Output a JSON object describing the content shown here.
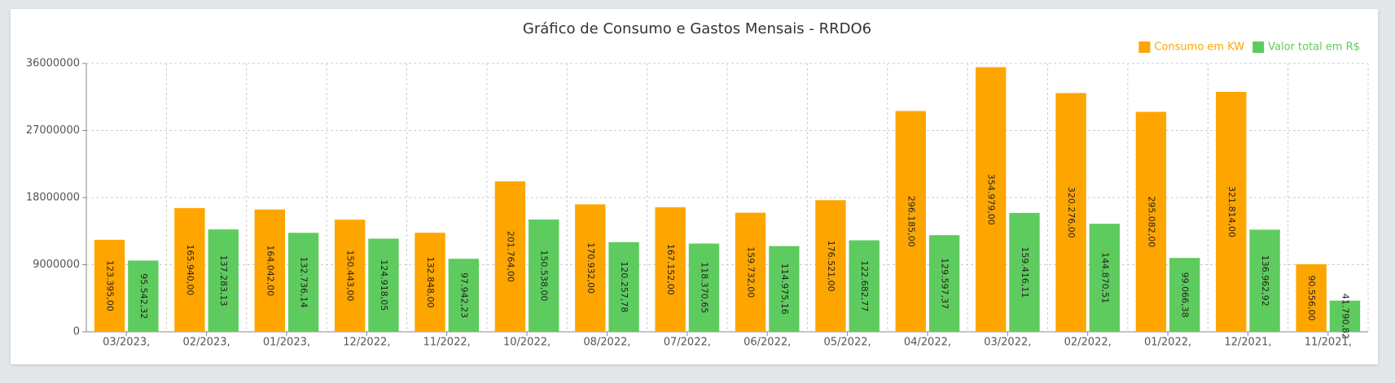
{
  "chart_data": {
    "type": "bar",
    "title": "Gráfico de Consumo e Gastos Mensais - RRDO6",
    "categories": [
      "03/2023,",
      "02/2023,",
      "01/2023,",
      "12/2022,",
      "11/2022,",
      "10/2022,",
      "08/2022,",
      "07/2022,",
      "06/2022,",
      "05/2022,",
      "04/2022,",
      "03/2022,",
      "02/2022,",
      "01/2022,",
      "12/2021,",
      "11/2021,"
    ],
    "series": [
      {
        "name": "Consumo em KW",
        "color": "#ffa500",
        "values": [
          12339500,
          16594000,
          16404200,
          15044300,
          13284800,
          20176400,
          17093200,
          16715200,
          15973200,
          17652100,
          29618500,
          35497900,
          32027600,
          29508200,
          32181400,
          9055600
        ],
        "value_labels": [
          "123.395,00",
          "165.940,00",
          "164.042,00",
          "150.443,00",
          "132.848,00",
          "201.764,00",
          "170.932,00",
          "167.152,00",
          "159.732,00",
          "176.521,00",
          "296.185,00",
          "354.979,00",
          "320.276,00",
          "295.082,00",
          "321.814,00",
          "90.556,00"
        ]
      },
      {
        "name": "Valor total em R$",
        "color": "#5ecb5e",
        "values": [
          9554232,
          13728313,
          13273614,
          12491805,
          9794223,
          15053800,
          12025778,
          11837065,
          11497516,
          12268277,
          12959737,
          15941611,
          14487051,
          9906638,
          13696292,
          4179082
        ],
        "value_labels": [
          "95.542,32",
          "137.283,13",
          "132.736,14",
          "124.918,05",
          "97.942,23",
          "150.538,00",
          "120.257,78",
          "118.370,65",
          "114.975,16",
          "122.682,77",
          "129.597,37",
          "159.416,11",
          "144.870,51",
          "99.066,38",
          "136.962,92",
          "41.790,82"
        ]
      }
    ],
    "ylim": [
      0,
      36000000
    ],
    "yticks": [
      0,
      9000000,
      18000000,
      27000000,
      36000000
    ],
    "grid": true,
    "legend": "top-right"
  }
}
